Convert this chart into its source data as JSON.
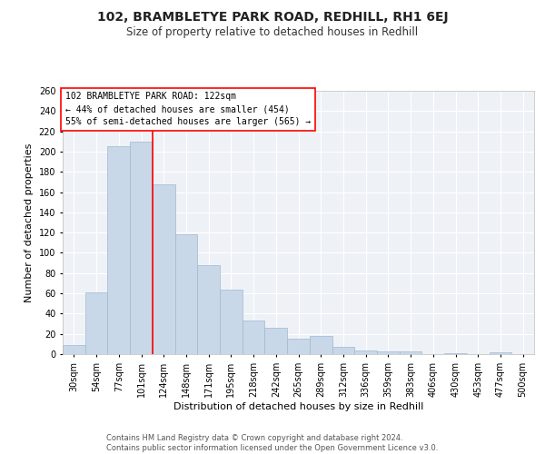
{
  "title": "102, BRAMBLETYE PARK ROAD, REDHILL, RH1 6EJ",
  "subtitle": "Size of property relative to detached houses in Redhill",
  "xlabel": "Distribution of detached houses by size in Redhill",
  "ylabel": "Number of detached properties",
  "footer": "Contains HM Land Registry data © Crown copyright and database right 2024.\nContains public sector information licensed under the Open Government Licence v3.0.",
  "bins": [
    "30sqm",
    "54sqm",
    "77sqm",
    "101sqm",
    "124sqm",
    "148sqm",
    "171sqm",
    "195sqm",
    "218sqm",
    "242sqm",
    "265sqm",
    "289sqm",
    "312sqm",
    "336sqm",
    "359sqm",
    "383sqm",
    "406sqm",
    "430sqm",
    "453sqm",
    "477sqm",
    "500sqm"
  ],
  "values": [
    9,
    61,
    205,
    210,
    168,
    118,
    88,
    64,
    33,
    26,
    15,
    18,
    7,
    4,
    3,
    3,
    0,
    1,
    0,
    2,
    0
  ],
  "bar_color": "#c8d8e8",
  "bar_edge_color": "#a0b8d0",
  "red_line_bin_index": 4,
  "annotation_title": "102 BRAMBLETYE PARK ROAD: 122sqm",
  "annotation_line1": "← 44% of detached houses are smaller (454)",
  "annotation_line2": "55% of semi-detached houses are larger (565) →",
  "ylim": [
    0,
    260
  ],
  "yticks": [
    0,
    20,
    40,
    60,
    80,
    100,
    120,
    140,
    160,
    180,
    200,
    220,
    240,
    260
  ],
  "background_color": "#eef2f7",
  "grid_color": "#ffffff",
  "title_fontsize": 10,
  "subtitle_fontsize": 8.5,
  "axis_label_fontsize": 8,
  "tick_fontsize": 7,
  "annotation_fontsize": 7,
  "footer_fontsize": 6
}
